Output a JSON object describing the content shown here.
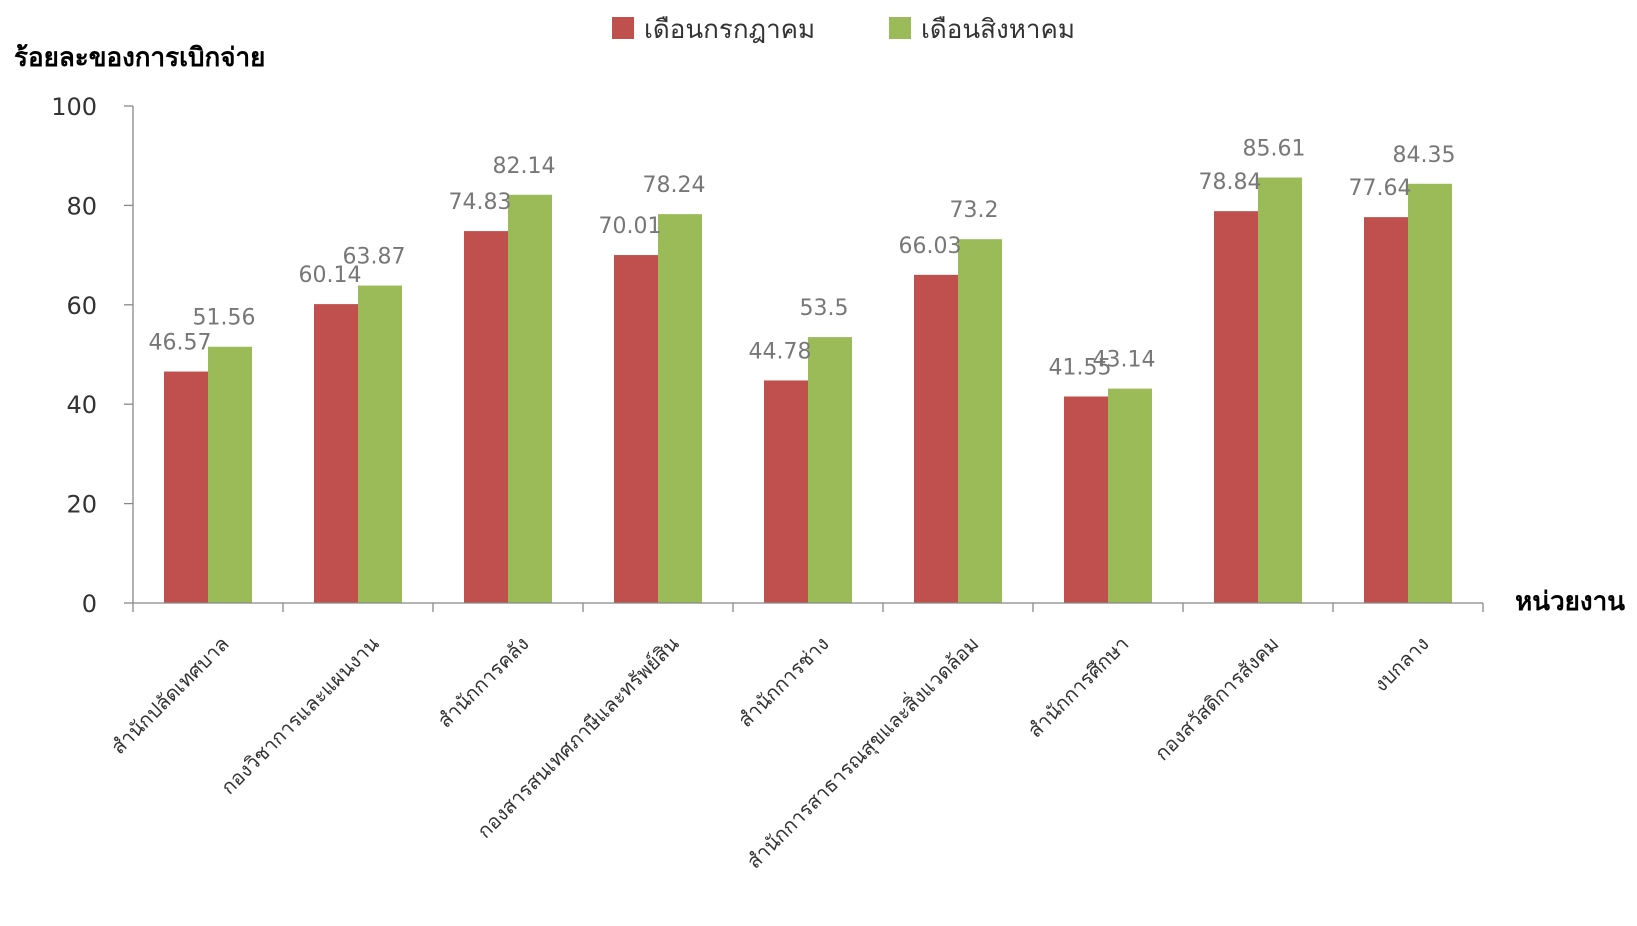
{
  "chart_data": {
    "type": "bar",
    "ylabel": "ร้อยละของการเบิกจ่าย",
    "xlabel": "หน่วยงาน",
    "ylim": [
      0,
      100
    ],
    "yticks": [
      0,
      20,
      40,
      60,
      80,
      100
    ],
    "grid": false,
    "legend_position": "top",
    "categories": [
      "สำนักปลัดเทศบาล",
      "กองวิชาการและแผนงาน",
      "สำนักการคลัง",
      "กองสารสนเทศภาษีและทรัพย์สิน",
      "สำนักการช่าง",
      "สำนักการสาธารณสุขและสิ่งแวดล้อม",
      "สำนักการศึกษา",
      "กองสวัสดิการสังคม",
      "งบกลาง"
    ],
    "series": [
      {
        "name": "เดือนกรกฎาคม",
        "color": "#c0504d",
        "values": [
          46.57,
          60.14,
          74.83,
          70.01,
          44.78,
          66.03,
          41.55,
          78.84,
          77.64
        ],
        "labels": [
          "46.57",
          "60.14",
          "74.83",
          "70.01",
          "44.78",
          "66.03",
          "41.55",
          "78.84",
          "77.64"
        ]
      },
      {
        "name": "เดือนสิงหาคม",
        "color": "#9bbb59",
        "values": [
          51.56,
          63.87,
          82.14,
          78.24,
          53.5,
          73.2,
          43.14,
          85.61,
          84.35
        ],
        "labels": [
          "51.56",
          "63.87",
          "82.14",
          "78.24",
          "53.5",
          "73.2",
          "43.14",
          "85.61",
          "84.35"
        ]
      }
    ]
  }
}
